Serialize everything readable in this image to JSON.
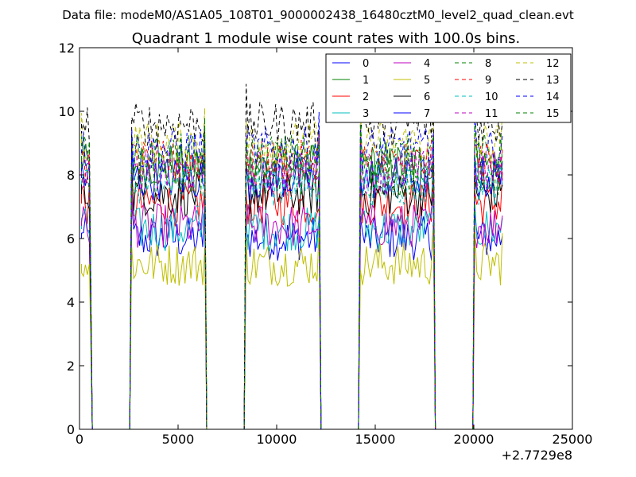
{
  "figure": {
    "suptitle": "Data file: modeM0/AS1A05_108T01_9000002438_16480cztM0_level2_quad_clean.evt"
  },
  "chart_data": {
    "type": "line",
    "title": "Quadrant 1 module wise count rates with 100.0s bins.",
    "xlabel": "",
    "ylabel": "",
    "x_offset_label": "+2.7729e8",
    "xlim": [
      0,
      25000
    ],
    "ylim": [
      0,
      12
    ],
    "xticks": [
      0,
      5000,
      10000,
      15000,
      20000,
      25000
    ],
    "yticks": [
      0,
      2,
      4,
      6,
      8,
      10,
      12
    ],
    "grid": false,
    "legend_position": "top-right",
    "legend_columns": 4,
    "segments": [
      [
        100,
        550
      ],
      [
        2650,
        6350
      ],
      [
        8450,
        12150
      ],
      [
        14250,
        17950
      ],
      [
        20050,
        21450
      ]
    ],
    "series": [
      {
        "name": "0",
        "color": "#0000ff",
        "style": "solid",
        "level": 6.0
      },
      {
        "name": "1",
        "color": "#008000",
        "style": "solid",
        "level": 8.3
      },
      {
        "name": "2",
        "color": "#ff0000",
        "style": "solid",
        "level": 7.1
      },
      {
        "name": "3",
        "color": "#00bfbf",
        "style": "solid",
        "level": 6.3
      },
      {
        "name": "4",
        "color": "#bf00bf",
        "style": "solid",
        "level": 6.4
      },
      {
        "name": "5",
        "color": "#bfbf00",
        "style": "solid",
        "level": 5.2
      },
      {
        "name": "6",
        "color": "#000000",
        "style": "solid",
        "level": 7.4
      },
      {
        "name": "7",
        "color": "#0000ff",
        "style": "solid",
        "level": 7.9
      },
      {
        "name": "8",
        "color": "#008000",
        "style": "dashed",
        "level": 8.0
      },
      {
        "name": "9",
        "color": "#ff0000",
        "style": "dashed",
        "level": 8.4
      },
      {
        "name": "10",
        "color": "#00bfbf",
        "style": "dashed",
        "level": 7.7
      },
      {
        "name": "11",
        "color": "#bf00bf",
        "style": "dashed",
        "level": 8.1
      },
      {
        "name": "12",
        "color": "#bfbf00",
        "style": "dashed",
        "level": 9.0
      },
      {
        "name": "13",
        "color": "#000000",
        "style": "dashed",
        "level": 9.6
      },
      {
        "name": "14",
        "color": "#0000ff",
        "style": "dashed",
        "level": 8.8
      },
      {
        "name": "15",
        "color": "#008000",
        "style": "dashed",
        "level": 8.6
      }
    ]
  }
}
